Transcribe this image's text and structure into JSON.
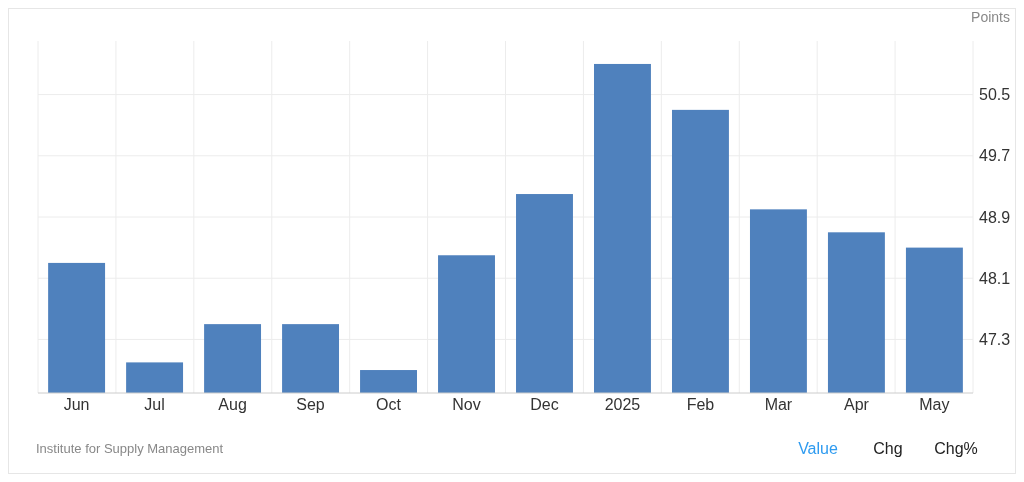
{
  "chart_data": {
    "type": "bar",
    "ylabel": "Points",
    "categories": [
      "Jun",
      "Jul",
      "Aug",
      "Sep",
      "Oct",
      "Nov",
      "Dec",
      "2025",
      "Feb",
      "Mar",
      "Apr",
      "May"
    ],
    "values": [
      48.3,
      47.0,
      47.5,
      47.5,
      46.9,
      48.4,
      49.2,
      50.9,
      50.3,
      49.0,
      48.7,
      48.5
    ],
    "color": "#4f81bd",
    "ylim": [
      46.6,
      51.2
    ],
    "yticks": [
      47.3,
      48.1,
      48.9,
      49.7,
      50.5
    ],
    "grid": true,
    "annotations": [
      "Institute for Supply Management",
      "Value",
      "Chg",
      "Chg%"
    ]
  }
}
